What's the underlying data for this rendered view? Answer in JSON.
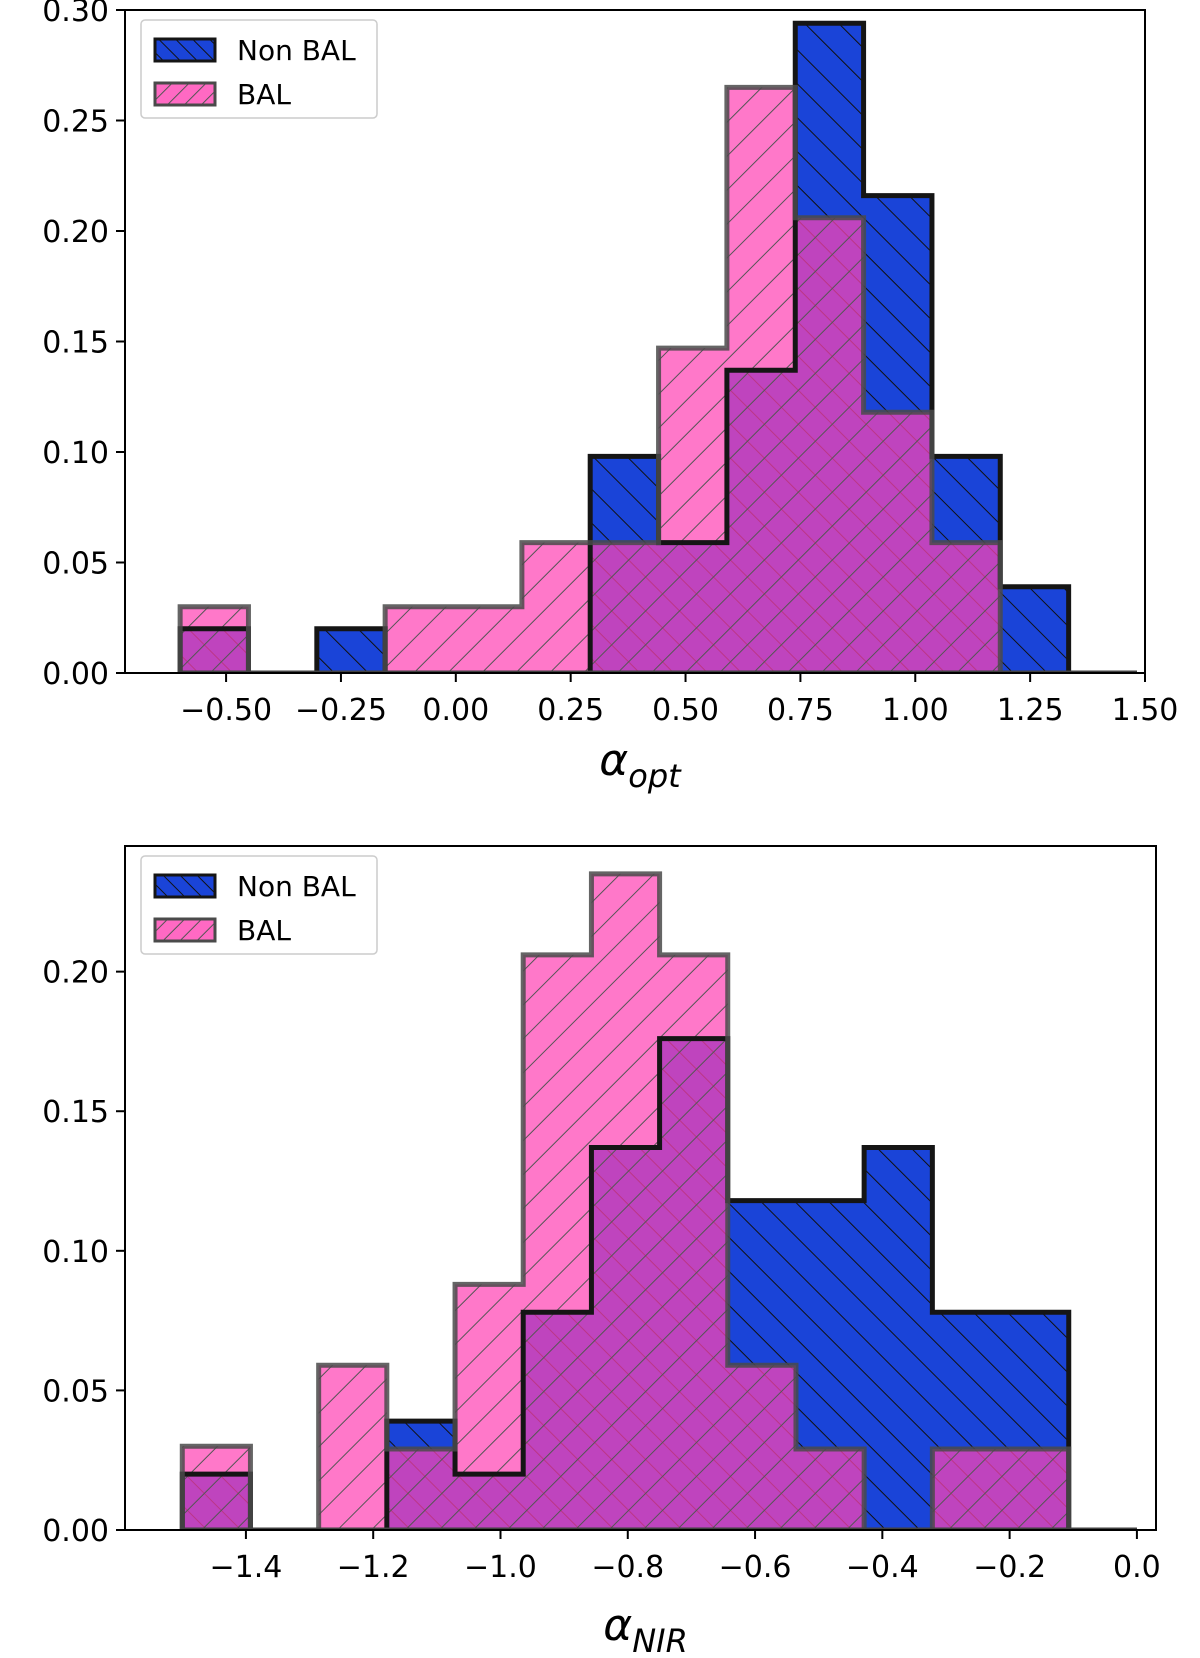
{
  "chart_data": [
    {
      "type": "histogram",
      "xlabel": "α",
      "xlabel_sub": "opt",
      "ylabel": "",
      "xlim": [
        -0.72,
        1.5
      ],
      "ylim": [
        0,
        0.3
      ],
      "xticks": [
        -0.5,
        -0.25,
        0.0,
        0.25,
        0.5,
        0.75,
        1.0,
        1.25,
        1.5
      ],
      "xtick_labels": [
        "−0.50",
        "−0.25",
        "0.00",
        "0.25",
        "0.50",
        "0.75",
        "1.00",
        "1.25",
        "1.50"
      ],
      "yticks": [
        0.0,
        0.05,
        0.1,
        0.15,
        0.2,
        0.25,
        0.3
      ],
      "ytick_labels": [
        "0.00",
        "0.05",
        "0.10",
        "0.15",
        "0.20",
        "0.25",
        "0.30"
      ],
      "legend": {
        "position": "top-left",
        "entries": [
          "Non BAL",
          "BAL"
        ]
      },
      "bin_edges": [
        -0.6,
        -0.4513,
        -0.3025,
        -0.1538,
        -0.005,
        0.1438,
        0.2925,
        0.4413,
        0.59,
        0.7388,
        0.8875,
        1.0363,
        1.185,
        1.3338,
        1.4825
      ],
      "series": [
        {
          "name": "Non BAL",
          "color": "#1a44d8",
          "values": [
            0.02,
            0.0,
            0.02,
            0.0,
            0.0,
            0.0,
            0.098,
            0.059,
            0.137,
            0.294,
            0.216,
            0.098,
            0.039,
            0.0
          ]
        },
        {
          "name": "BAL",
          "color": "#ff44b4",
          "values": [
            0.03,
            0.0,
            0.0,
            0.03,
            0.03,
            0.059,
            0.059,
            0.147,
            0.265,
            0.206,
            0.118,
            0.059,
            0.0,
            0.0
          ]
        }
      ]
    },
    {
      "type": "histogram",
      "xlabel": "α",
      "xlabel_sub": "NIR",
      "ylabel": "",
      "xlim": [
        -1.59,
        0.03
      ],
      "ylim": [
        0,
        0.245
      ],
      "xticks": [
        -1.4,
        -1.2,
        -1.0,
        -0.8,
        -0.6,
        -0.4,
        -0.2,
        0.0
      ],
      "xtick_labels": [
        "−1.4",
        "−1.2",
        "−1.0",
        "−0.8",
        "−0.6",
        "−0.4",
        "−0.2",
        "0.0"
      ],
      "yticks": [
        0.0,
        0.05,
        0.1,
        0.15,
        0.2
      ],
      "ytick_labels": [
        "0.00",
        "0.05",
        "0.10",
        "0.15",
        "0.20"
      ],
      "legend": {
        "position": "top-left",
        "entries": [
          "Non BAL",
          "BAL"
        ]
      },
      "bin_edges": [
        -1.5,
        -1.3929,
        -1.2857,
        -1.1786,
        -1.0714,
        -0.9643,
        -0.8571,
        -0.75,
        -0.6429,
        -0.5357,
        -0.4286,
        -0.3214,
        -0.2143,
        -0.1071,
        0.0
      ],
      "series": [
        {
          "name": "Non BAL",
          "color": "#1a44d8",
          "values": [
            0.02,
            0.0,
            0.0,
            0.039,
            0.02,
            0.078,
            0.137,
            0.176,
            0.118,
            0.118,
            0.137,
            0.078,
            0.078,
            0.0
          ]
        },
        {
          "name": "BAL",
          "color": "#ff44b4",
          "values": [
            0.03,
            0.0,
            0.059,
            0.029,
            0.088,
            0.206,
            0.235,
            0.206,
            0.059,
            0.029,
            0.0,
            0.029,
            0.029,
            0.0
          ]
        }
      ]
    }
  ]
}
